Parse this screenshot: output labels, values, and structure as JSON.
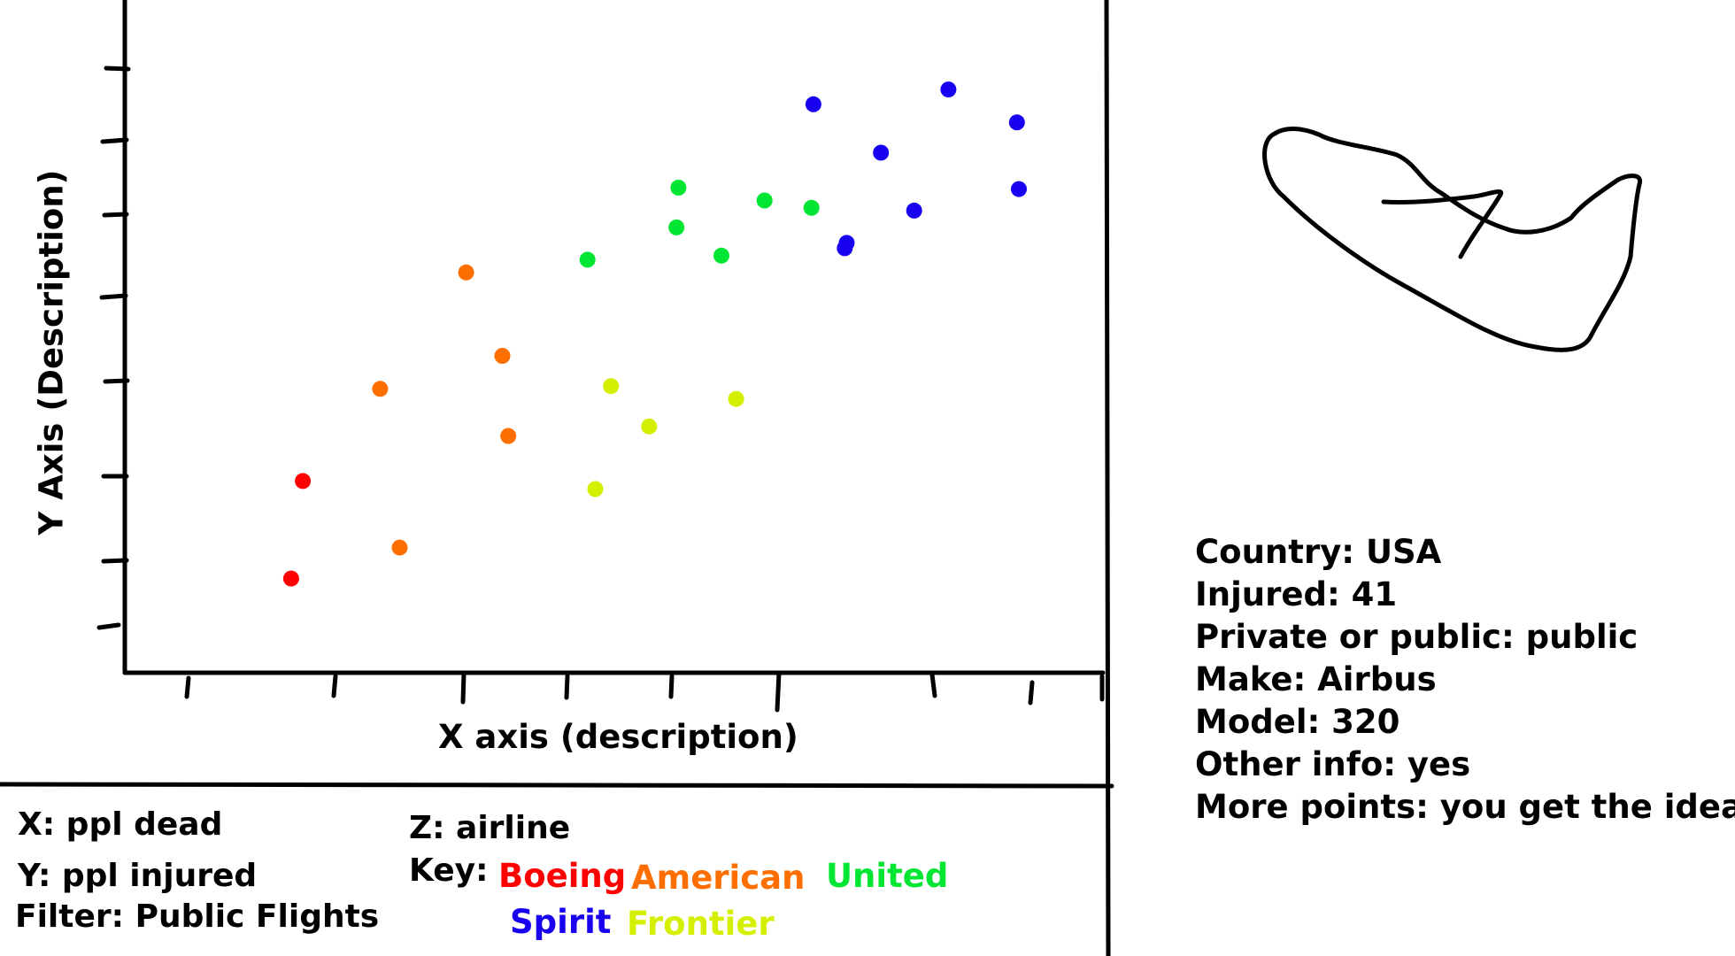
{
  "chart_data": {
    "type": "scatter",
    "xlabel": "X axis (description)",
    "ylabel": "Y Axis (Description)",
    "xlim": [
      0,
      10
    ],
    "ylim": [
      0,
      10
    ],
    "grid": false,
    "series": [
      {
        "name": "Boeing",
        "color": "#ff0000",
        "points": [
          [
            1.7,
            1.4
          ],
          [
            1.82,
            2.85
          ]
        ]
      },
      {
        "name": "American",
        "color": "#ff6f00",
        "points": [
          [
            2.81,
            1.86
          ],
          [
            2.61,
            4.22
          ],
          [
            3.49,
            5.95
          ],
          [
            3.86,
            4.71
          ],
          [
            3.92,
            3.52
          ]
        ]
      },
      {
        "name": "United",
        "color": "#00e632",
        "points": [
          [
            4.73,
            6.14
          ],
          [
            5.64,
            6.62
          ],
          [
            5.66,
            7.21
          ],
          [
            6.1,
            6.2
          ],
          [
            6.54,
            7.02
          ],
          [
            7.02,
            6.91
          ]
        ]
      },
      {
        "name": "Spirit",
        "color": "#1800f0",
        "points": [
          [
            7.04,
            8.45
          ],
          [
            7.36,
            6.31
          ],
          [
            7.38,
            6.39
          ],
          [
            7.73,
            7.73
          ],
          [
            8.07,
            6.87
          ],
          [
            8.42,
            8.67
          ],
          [
            9.12,
            8.18
          ],
          [
            9.14,
            7.19
          ]
        ]
      },
      {
        "name": "Frontier",
        "color": "#d4f000",
        "points": [
          [
            4.97,
            4.26
          ],
          [
            5.36,
            3.66
          ],
          [
            6.25,
            4.07
          ],
          [
            4.81,
            2.73
          ]
        ]
      }
    ]
  },
  "legend": {
    "x_def": "X: ppl dead",
    "y_def": "Y: ppl injured",
    "filter": "Filter: Public Flights",
    "z_def": "Z: airline",
    "key_label": "Key:",
    "keys": [
      {
        "name": "Boeing",
        "color": "#ff0000"
      },
      {
        "name": "American",
        "color": "#ff6f00"
      },
      {
        "name": "United",
        "color": "#00e632"
      },
      {
        "name": "Spirit",
        "color": "#1800f0"
      },
      {
        "name": "Frontier",
        "color": "#d4f000"
      }
    ]
  },
  "info": {
    "country": "Country: USA",
    "injured": "Injured: 41",
    "private_public": "Private or public: public",
    "make": "Make: Airbus",
    "model": "Model: 320",
    "other": "Other info: yes",
    "more": "More points: you get the idea"
  },
  "map_sketch": {
    "icon": "country-outline-sketch-icon"
  }
}
